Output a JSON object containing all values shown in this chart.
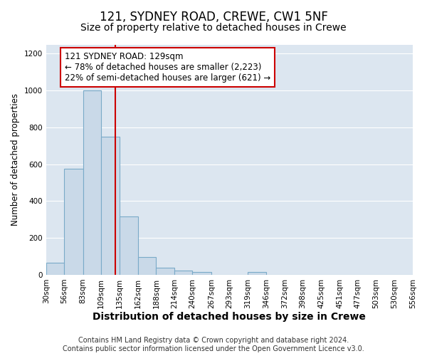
{
  "title": "121, SYDNEY ROAD, CREWE, CW1 5NF",
  "subtitle": "Size of property relative to detached houses in Crewe",
  "xlabel": "Distribution of detached houses by size in Crewe",
  "ylabel": "Number of detached properties",
  "footer_lines": [
    "Contains HM Land Registry data © Crown copyright and database right 2024.",
    "Contains public sector information licensed under the Open Government Licence v3.0."
  ],
  "bar_edges": [
    30,
    56,
    83,
    109,
    135,
    162,
    188,
    214,
    240,
    267,
    293,
    319,
    346,
    372,
    398,
    425,
    451,
    477,
    503,
    530,
    556
  ],
  "bar_heights": [
    65,
    575,
    1000,
    750,
    315,
    95,
    40,
    22,
    15,
    0,
    0,
    15,
    0,
    0,
    0,
    0,
    0,
    0,
    0,
    0
  ],
  "bar_color": "#c9d9e8",
  "bar_edgecolor": "#7aaac8",
  "bar_linewidth": 0.8,
  "vline_x": 129,
  "vline_color": "#cc0000",
  "vline_linewidth": 1.5,
  "annotation_title": "121 SYDNEY ROAD: 129sqm",
  "annotation_line1": "← 78% of detached houses are smaller (2,223)",
  "annotation_line2": "22% of semi-detached houses are larger (621) →",
  "annotation_box_edgecolor": "#cc0000",
  "annotation_box_facecolor": "#ffffff",
  "annotation_fontsize": 8.5,
  "ylim": [
    0,
    1250
  ],
  "yticks": [
    0,
    200,
    400,
    600,
    800,
    1000,
    1200
  ],
  "xlim": [
    30,
    556
  ],
  "xtick_labels": [
    "30sqm",
    "56sqm",
    "83sqm",
    "109sqm",
    "135sqm",
    "162sqm",
    "188sqm",
    "214sqm",
    "240sqm",
    "267sqm",
    "293sqm",
    "319sqm",
    "346sqm",
    "372sqm",
    "398sqm",
    "425sqm",
    "451sqm",
    "477sqm",
    "503sqm",
    "530sqm",
    "556sqm"
  ],
  "xtick_positions": [
    30,
    56,
    83,
    109,
    135,
    162,
    188,
    214,
    240,
    267,
    293,
    319,
    346,
    372,
    398,
    425,
    451,
    477,
    503,
    530,
    556
  ],
  "figure_background_color": "#ffffff",
  "plot_background_color": "#dce6f0",
  "grid_color": "#ffffff",
  "title_fontsize": 12,
  "subtitle_fontsize": 10,
  "xlabel_fontsize": 10,
  "ylabel_fontsize": 8.5,
  "tick_fontsize": 7.5,
  "footer_fontsize": 7.0
}
